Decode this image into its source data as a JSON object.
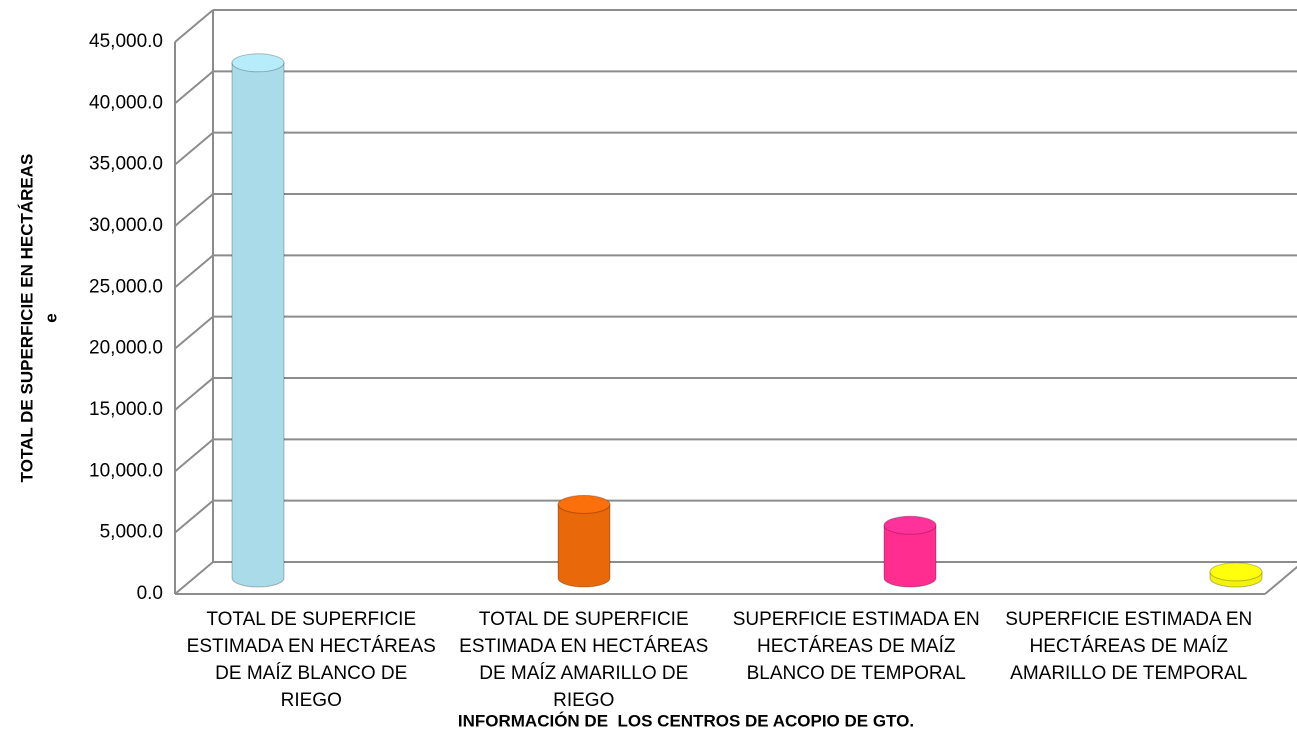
{
  "chart_data": {
    "type": "bar3d",
    "x_label": "INFORMACIÓN DE  LOS CENTROS DE ACOPIO DE GTO.",
    "y_label": [
      "TOTAL DE SUPERFICIE EN HECTÁREAS",
      "e"
    ],
    "categories": [
      "TOTAL DE SUPERFICIE ESTIMADA EN HECTÁREAS DE MAÍZ BLANCO DE RIEGO",
      "TOTAL DE SUPERFICIE ESTIMADA EN HECTÁREAS DE MAÍZ AMARILLO DE RIEGO",
      "SUPERFICIE ESTIMADA EN HECTÁREAS DE MAÍZ BLANCO DE TEMPORAL",
      "SUPERFICIE ESTIMADA EN HECTÁREAS DE MAÍZ AMARILLO DE TEMPORAL"
    ],
    "values": [
      42000,
      6000,
      4300,
      500
    ],
    "colors": [
      "#a9dbe8",
      "#e8680a",
      "#ff2d8f",
      "#f2f20a"
    ],
    "ylim": [
      0,
      45000
    ],
    "yticks": [
      {
        "value": 0,
        "label": "0.0"
      },
      {
        "value": 5000,
        "label": "5,000.0"
      },
      {
        "value": 10000,
        "label": "10,000.0"
      },
      {
        "value": 15000,
        "label": "15,000.0"
      },
      {
        "value": 20000,
        "label": "20,000.0"
      },
      {
        "value": 25000,
        "label": "25,000.0"
      },
      {
        "value": 30000,
        "label": "30,000.0"
      },
      {
        "value": 35000,
        "label": "35,000.0"
      },
      {
        "value": 40000,
        "label": "40,000.0"
      },
      {
        "value": 45000,
        "label": "45,000.0"
      }
    ],
    "grid": true
  }
}
